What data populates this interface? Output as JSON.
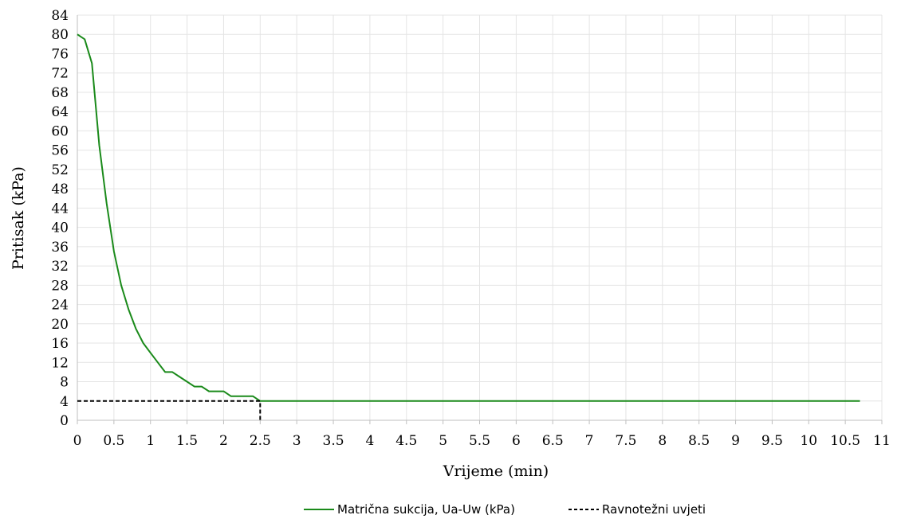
{
  "chart_data": {
    "type": "line",
    "xlabel": "Vrijeme (min)",
    "ylabel": "Pritisak (kPa)",
    "xlim": [
      0,
      11
    ],
    "ylim": [
      0,
      84
    ],
    "xticks": [
      "0",
      "0.5",
      "1",
      "1.5",
      "2",
      "2.5",
      "3",
      "3.5",
      "4",
      "4.5",
      "5",
      "5.5",
      "6",
      "6.5",
      "7",
      "7.5",
      "8",
      "8.5",
      "9",
      "9.5",
      "10",
      "10.5",
      "11"
    ],
    "xtick_values": [
      0,
      0.5,
      1,
      1.5,
      2,
      2.5,
      3,
      3.5,
      4,
      4.5,
      5,
      5.5,
      6,
      6.5,
      7,
      7.5,
      8,
      8.5,
      9,
      9.5,
      10,
      10.5,
      11
    ],
    "yticks": [
      "0",
      "4",
      "8",
      "12",
      "16",
      "20",
      "24",
      "28",
      "32",
      "36",
      "40",
      "44",
      "48",
      "52",
      "56",
      "60",
      "64",
      "68",
      "72",
      "76",
      "80",
      "84"
    ],
    "ytick_values": [
      0,
      4,
      8,
      12,
      16,
      20,
      24,
      28,
      32,
      36,
      40,
      44,
      48,
      52,
      56,
      60,
      64,
      68,
      72,
      76,
      80,
      84
    ],
    "grid": true,
    "legend_position": "bottom",
    "series": [
      {
        "name": "Matrična sukcija, Ua-Uw (kPa)",
        "color": "#1a8a1a",
        "style": "solid",
        "x": [
          0,
          0.1,
          0.2,
          0.3,
          0.4,
          0.5,
          0.6,
          0.7,
          0.8,
          0.9,
          1.0,
          1.1,
          1.2,
          1.3,
          1.4,
          1.5,
          1.6,
          1.7,
          1.8,
          1.9,
          2.0,
          2.1,
          2.2,
          2.3,
          2.4,
          2.5,
          3,
          4,
          5,
          6,
          7,
          8,
          9,
          10,
          10.7
        ],
        "y": [
          80,
          79,
          74,
          57,
          45,
          35,
          28,
          23,
          19,
          16,
          14,
          12,
          10,
          10,
          9,
          8,
          7,
          7,
          6,
          6,
          6,
          5,
          5,
          5,
          5,
          4,
          4,
          4,
          4,
          4,
          4,
          4,
          4,
          4,
          4
        ]
      },
      {
        "name": "Ravnotežni uvjeti",
        "color": "#000000",
        "style": "dashed",
        "x": [
          0,
          2.5,
          2.5
        ],
        "y": [
          4,
          4,
          0
        ]
      }
    ]
  }
}
